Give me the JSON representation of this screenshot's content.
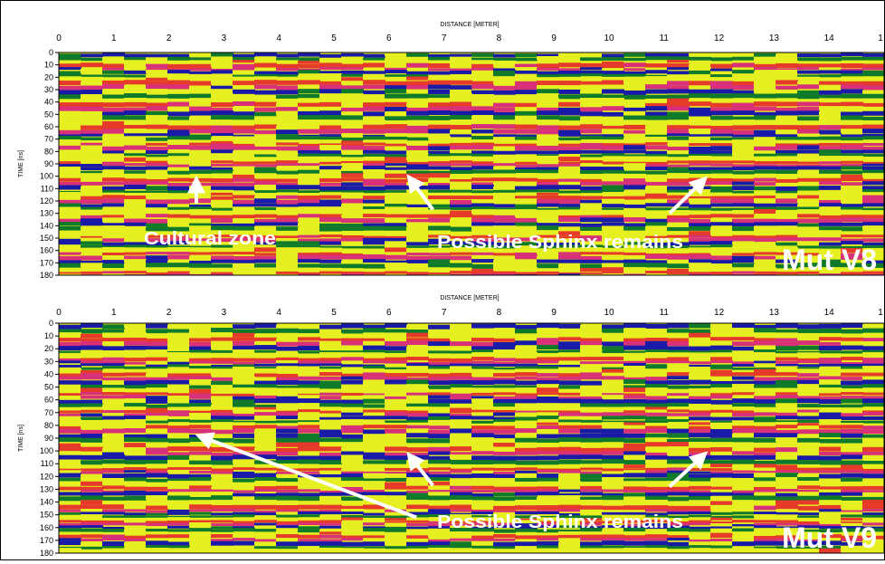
{
  "chart_data": [
    {
      "type": "heatmap",
      "title": "Mut V8",
      "xlabel": "DISTANCE [METER]",
      "ylabel": "TIME [ns]",
      "x_ticks": [
        "0",
        "1",
        "2",
        "3",
        "4",
        "5",
        "6",
        "7",
        "8",
        "9",
        "10",
        "11",
        "12",
        "13",
        "14",
        "1"
      ],
      "y_ticks": [
        "0",
        "10",
        "20",
        "30",
        "40",
        "50",
        "60",
        "70",
        "80",
        "90",
        "100",
        "110",
        "120",
        "130",
        "140",
        "150",
        "160",
        "170",
        "180"
      ],
      "xlim": [
        0,
        15
      ],
      "ylim": [
        0,
        180
      ],
      "colors": [
        "#1a1aa8",
        "#0e7a2a",
        "#e6f020",
        "#e63a2a",
        "#d9307a"
      ],
      "annotations": [
        {
          "text": "Cultural zone",
          "x": 2.4,
          "y": 155,
          "arrow_from": [
            2.5,
            122
          ],
          "arrow_to": [
            2.5,
            105
          ]
        },
        {
          "text": "Possible Sphinx remains",
          "x": 6.8,
          "y": 158,
          "arrows": [
            [
              [
                6.8,
                127
              ],
              [
                6.4,
                103
              ]
            ],
            [
              [
                11.1,
                130
              ],
              [
                11.7,
                104
              ]
            ]
          ]
        }
      ]
    },
    {
      "type": "heatmap",
      "title": "Mut V9",
      "xlabel": "DISTANCE [METER]",
      "ylabel": "TIME [ns]",
      "x_ticks": [
        "0",
        "1",
        "2",
        "3",
        "4",
        "5",
        "6",
        "7",
        "8",
        "9",
        "10",
        "11",
        "12",
        "13",
        "14",
        "1"
      ],
      "y_ticks": [
        "0",
        "10",
        "20",
        "30",
        "40",
        "50",
        "60",
        "70",
        "80",
        "90",
        "100",
        "110",
        "120",
        "130",
        "140",
        "150",
        "160",
        "170",
        "180"
      ],
      "xlim": [
        0,
        15
      ],
      "ylim": [
        0,
        180
      ],
      "colors": [
        "#1a1aa8",
        "#0e7a2a",
        "#e6f020",
        "#e63a2a",
        "#d9307a"
      ],
      "annotations": [
        {
          "text": "Possible Sphinx remains",
          "x": 6.8,
          "y": 160,
          "arrows": [
            [
              [
                6.5,
                152
              ],
              [
                2.6,
                89
              ]
            ],
            [
              [
                6.8,
                127
              ],
              [
                6.4,
                105
              ]
            ],
            [
              [
                11.1,
                128
              ],
              [
                11.7,
                104
              ]
            ]
          ]
        }
      ]
    }
  ]
}
